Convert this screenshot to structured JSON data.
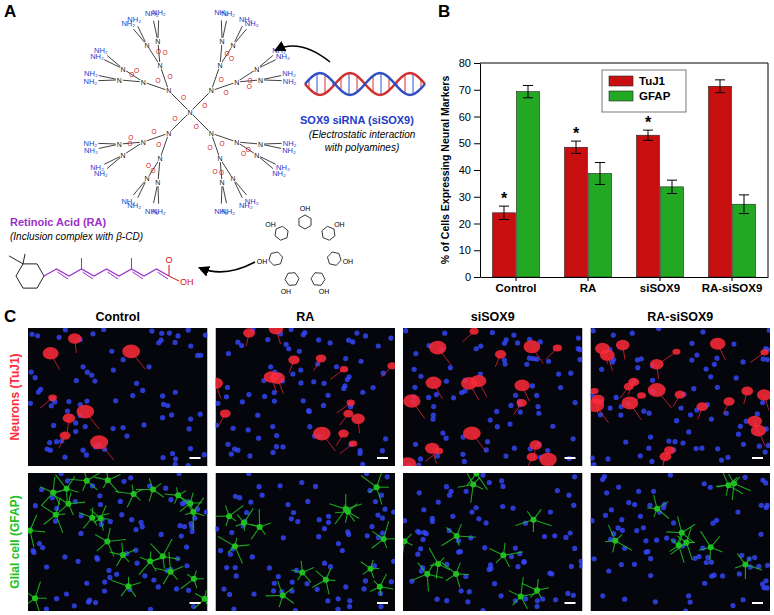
{
  "chart_data": {
    "type": "bar",
    "y_label": "% of Cells Expressing Neural Markers",
    "categories": [
      "Control",
      "RA",
      "siSOX9",
      "RA-siSOX9"
    ],
    "series": [
      {
        "name": "TuJ1",
        "color": "#c81010",
        "values": [
          24,
          48.5,
          53,
          71.3
        ],
        "errors": [
          2.5,
          2.3,
          1.9,
          2.4
        ]
      },
      {
        "name": "GFAP",
        "color": "#22a822",
        "values": [
          69.3,
          38.7,
          33.7,
          27.2
        ],
        "errors": [
          2.3,
          4.1,
          2.5,
          3.5
        ]
      }
    ],
    "ylim": [
      0,
      80
    ],
    "yticks": [
      0,
      10,
      20,
      30,
      40,
      50,
      60,
      70,
      80
    ],
    "legend": "top",
    "annotations": [
      {
        "text": "*",
        "category": "Control",
        "series": "TuJ1"
      },
      {
        "text": "*",
        "category": "RA",
        "series": "TuJ1"
      },
      {
        "text": "*",
        "category": "siSOX9",
        "series": "TuJ1"
      }
    ]
  },
  "panel_labels": [
    "A",
    "B",
    "C"
  ],
  "diagram": {
    "sirna_title": "SOX9 siRNA (siSOX9)",
    "sirna_note": [
      "(Electrostatic interaction",
      "with polyamines)"
    ],
    "ra_title": "Retinoic Acid (RA)",
    "ra_note": "(Inclusion complex with β-CD)",
    "amine": "NH₂",
    "nitrogen": "N",
    "carbonyl": "O",
    "hydroxyl": "OH"
  },
  "micrographs": {
    "columns": [
      "Control",
      "RA",
      "siSOX9",
      "RA-siSOX9"
    ],
    "rows": [
      {
        "label": "Neurons (TuJ1)",
        "color": "#ff2a3a"
      },
      {
        "label": "Glial cell (GFAP)",
        "color": "#22c022"
      }
    ]
  }
}
